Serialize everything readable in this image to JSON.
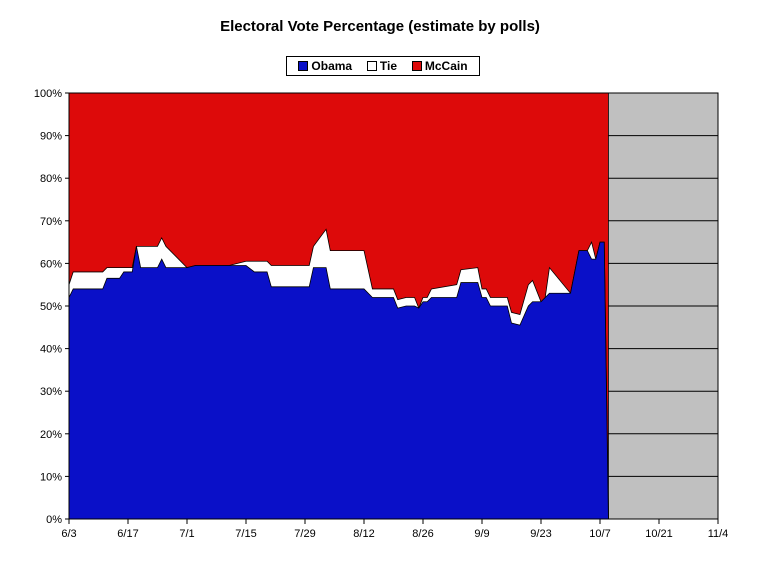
{
  "chart_data": {
    "type": "area",
    "title": "Electoral Vote Percentage (estimate by polls)",
    "xlabel": "",
    "ylabel": "",
    "x_tick_labels": [
      "6/3",
      "6/17",
      "7/1",
      "7/15",
      "7/29",
      "8/12",
      "8/26",
      "9/9",
      "9/23",
      "10/7",
      "10/21",
      "11/4"
    ],
    "x_tick_day_offsets": [
      0,
      14,
      28,
      42,
      56,
      70,
      84,
      98,
      112,
      126,
      140,
      154
    ],
    "y_tick_labels": [
      "0%",
      "10%",
      "20%",
      "30%",
      "40%",
      "50%",
      "60%",
      "70%",
      "80%",
      "90%",
      "100%"
    ],
    "ylim": [
      0,
      100
    ],
    "stacked": true,
    "grid": "horizontal",
    "legend_position": "top",
    "colors": {
      "Obama": "#0a10c8",
      "Tie": "#ffffff",
      "McCain": "#dd0a0a",
      "future": "#c0c0c0"
    },
    "series": [
      {
        "name": "Obama",
        "color": "#0a10c8",
        "points": [
          [
            0,
            52
          ],
          [
            1,
            54
          ],
          [
            8,
            54
          ],
          [
            9,
            56.5
          ],
          [
            12,
            56.5
          ],
          [
            13,
            58
          ],
          [
            15,
            58
          ],
          [
            16,
            64
          ],
          [
            17,
            59
          ],
          [
            21,
            59
          ],
          [
            22,
            61
          ],
          [
            23,
            59
          ],
          [
            28,
            59
          ],
          [
            30,
            59.5
          ],
          [
            38,
            59.5
          ],
          [
            42,
            59.5
          ],
          [
            44,
            58
          ],
          [
            47,
            58
          ],
          [
            48,
            54.5
          ],
          [
            57,
            54.5
          ],
          [
            58,
            59
          ],
          [
            61,
            59
          ],
          [
            62,
            54
          ],
          [
            70,
            54
          ],
          [
            72,
            52
          ],
          [
            77,
            52
          ],
          [
            78,
            49.5
          ],
          [
            80,
            50
          ],
          [
            82,
            50
          ],
          [
            83,
            49.5
          ],
          [
            84,
            51
          ],
          [
            85,
            51
          ],
          [
            86,
            52
          ],
          [
            92,
            52
          ],
          [
            93,
            55.5
          ],
          [
            97,
            55.5
          ],
          [
            98,
            52
          ],
          [
            99,
            52
          ],
          [
            100,
            50
          ],
          [
            104,
            50
          ],
          [
            105,
            46
          ],
          [
            107,
            45.5
          ],
          [
            109,
            50
          ],
          [
            110,
            51
          ],
          [
            112,
            51
          ],
          [
            113,
            52
          ],
          [
            114,
            53
          ],
          [
            119,
            53
          ],
          [
            120,
            58
          ],
          [
            121,
            63
          ],
          [
            123,
            63
          ],
          [
            124,
            61
          ],
          [
            125,
            61
          ],
          [
            126,
            65
          ],
          [
            127,
            65
          ],
          [
            128,
            0
          ]
        ]
      },
      {
        "name": "Tie",
        "color": "#ffffff",
        "points": [
          [
            0,
            3
          ],
          [
            1,
            4
          ],
          [
            8,
            4
          ],
          [
            9,
            2.5
          ],
          [
            12,
            2.5
          ],
          [
            13,
            1
          ],
          [
            15,
            1
          ],
          [
            16,
            0
          ],
          [
            17,
            5
          ],
          [
            21,
            5
          ],
          [
            22,
            5
          ],
          [
            23,
            5
          ],
          [
            28,
            0
          ],
          [
            30,
            0
          ],
          [
            38,
            0
          ],
          [
            39,
            1
          ],
          [
            40,
            2.5
          ],
          [
            42,
            2.5
          ],
          [
            44,
            5
          ],
          [
            47,
            5
          ],
          [
            48,
            5
          ],
          [
            49,
            9
          ],
          [
            56,
            9
          ],
          [
            57,
            9
          ],
          [
            58,
            2
          ],
          [
            61,
            2
          ],
          [
            62,
            2
          ],
          [
            66,
            2
          ],
          [
            70,
            2
          ],
          [
            71,
            0
          ],
          [
            72,
            1
          ],
          [
            77,
            1
          ],
          [
            78,
            2
          ],
          [
            80,
            3
          ],
          [
            82,
            3
          ],
          [
            83,
            3.5
          ],
          [
            84,
            2
          ],
          [
            85,
            2
          ],
          [
            86,
            2
          ],
          [
            92,
            2
          ],
          [
            93,
            2.5
          ],
          [
            97,
            2.5
          ],
          [
            98,
            5
          ],
          [
            99,
            5
          ],
          [
            100,
            0
          ],
          [
            104,
            0
          ],
          [
            105,
            6
          ],
          [
            107,
            0
          ],
          [
            109,
            0
          ],
          [
            110,
            0
          ],
          [
            112,
            0
          ],
          [
            113,
            4
          ],
          [
            114,
            0
          ],
          [
            119,
            0
          ],
          [
            120,
            0
          ],
          [
            121,
            2
          ],
          [
            123,
            2
          ],
          [
            124,
            2
          ],
          [
            125,
            2
          ],
          [
            126,
            2
          ],
          [
            127,
            2
          ],
          [
            128,
            0
          ]
        ]
      },
      {
        "name": "McCain",
        "color": "#dd0a0a",
        "points": [
          [
            0,
            45
          ],
          [
            128,
            100
          ]
        ]
      }
    ],
    "forecast_region_start_day": 128
  }
}
